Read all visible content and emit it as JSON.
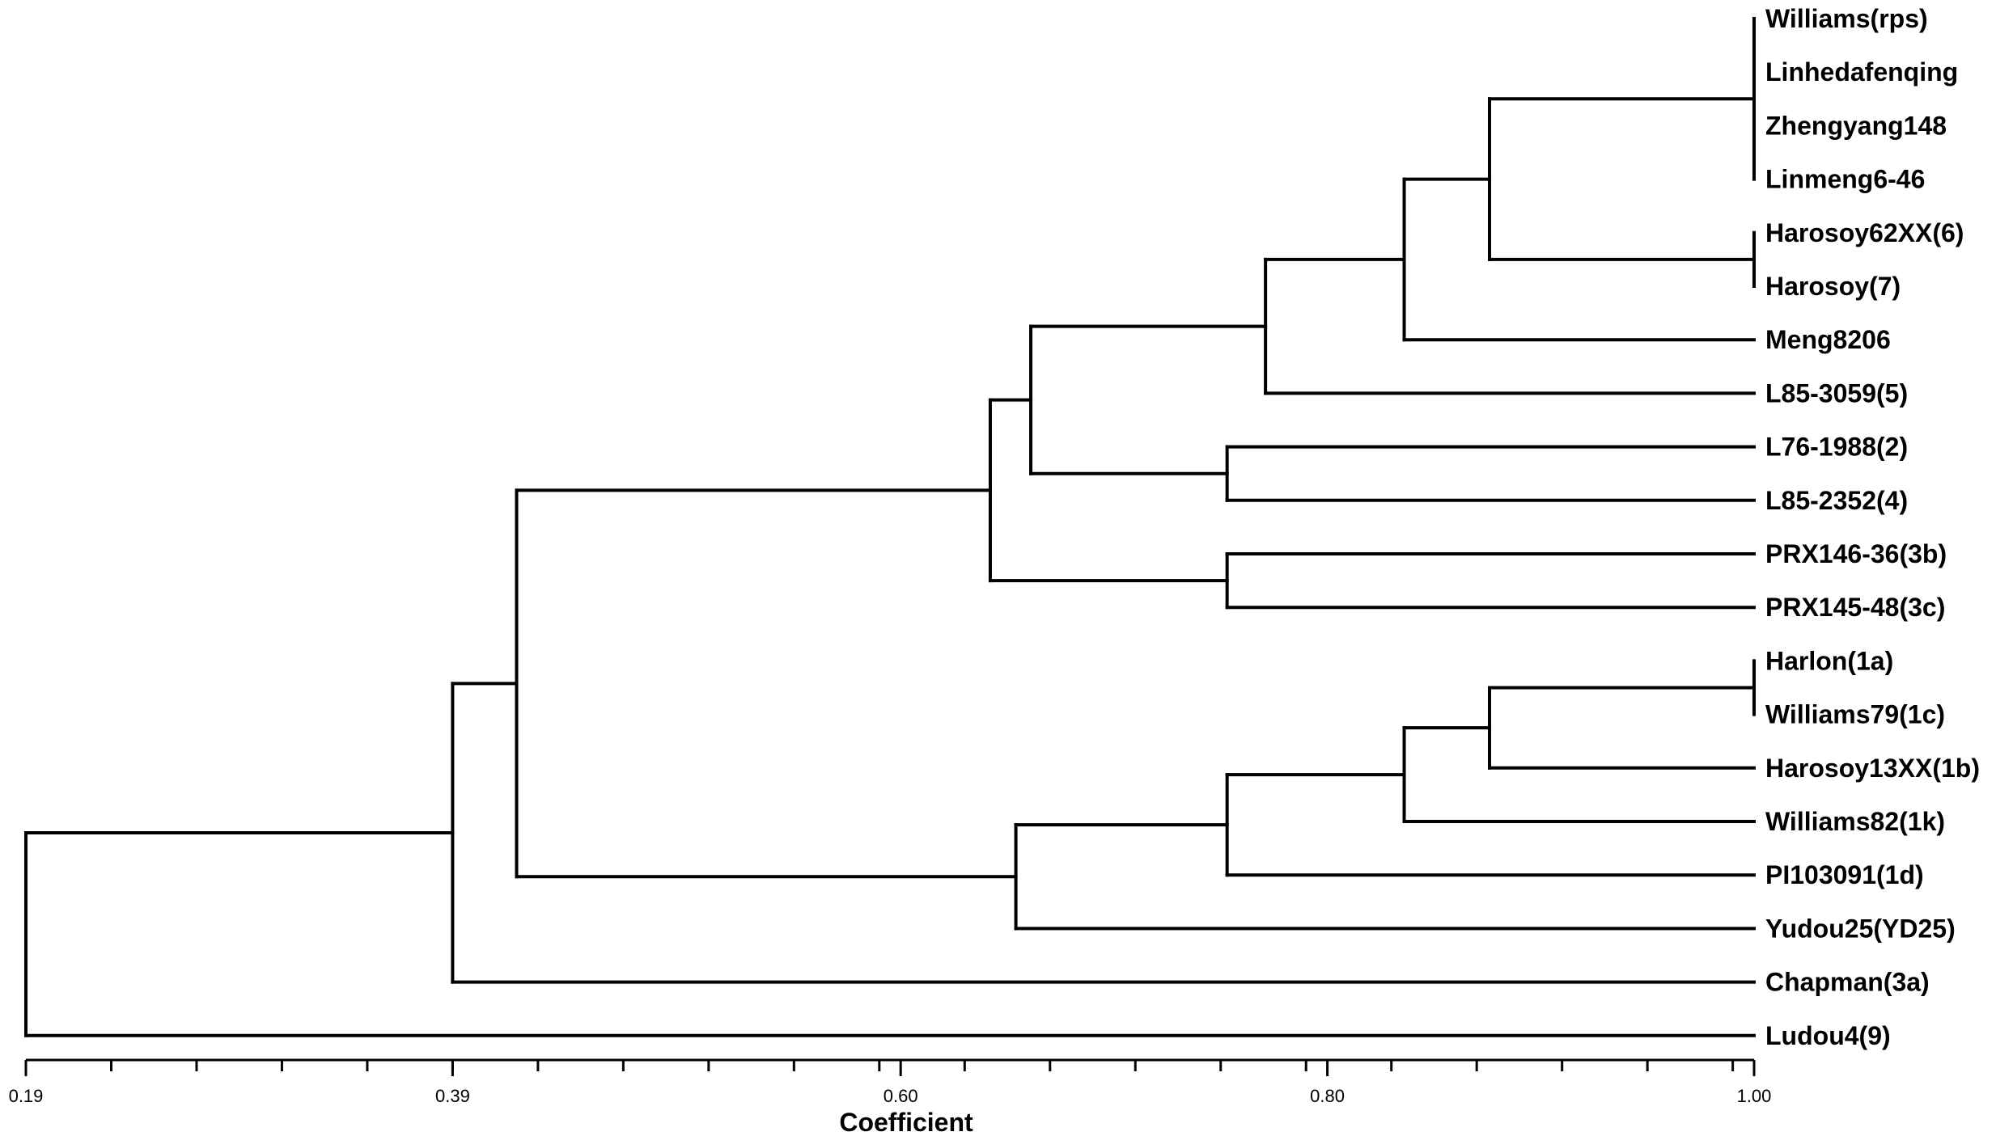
{
  "diagram": {
    "type": "dendrogram",
    "leaves": [
      "Williams(rps)",
      "Linhedafenqing",
      "Zhengyang148",
      "Linmeng6-46",
      "Harosoy62XX(6)",
      "Harosoy(7)",
      "Meng8206",
      "L85-3059(5)",
      "L76-1988(2)",
      "L85-2352(4)",
      "PRX146-36(3b)",
      "PRX145-48(3c)",
      "Harlon(1a)",
      "Williams79(1c)",
      "Harosoy13XX(1b)",
      "Williams82(1k)",
      "PI103091(1d)",
      "Yudou25(YD25)",
      "Chapman(3a)",
      "Ludou4(9)"
    ],
    "merges": [
      {
        "id": "n1",
        "children": [
          "L0",
          "L1",
          "L2",
          "L3"
        ],
        "coefficient": 1.0
      },
      {
        "id": "n2",
        "children": [
          "L4",
          "L5"
        ],
        "coefficient": 1.0
      },
      {
        "id": "n3",
        "children": [
          "L12",
          "L13"
        ],
        "coefficient": 1.0
      },
      {
        "id": "n4",
        "children": [
          "n1",
          "n2"
        ],
        "coefficient": 0.876
      },
      {
        "id": "n5",
        "children": [
          "n4",
          "L6"
        ],
        "coefficient": 0.836
      },
      {
        "id": "n6",
        "children": [
          "n5",
          "L7"
        ],
        "coefficient": 0.771
      },
      {
        "id": "n7",
        "children": [
          "L8",
          "L9"
        ],
        "coefficient": 0.753
      },
      {
        "id": "n8",
        "children": [
          "n6",
          "n7"
        ],
        "coefficient": 0.661
      },
      {
        "id": "n9",
        "children": [
          "L10",
          "L11"
        ],
        "coefficient": 0.753
      },
      {
        "id": "n10",
        "children": [
          "n8",
          "n9"
        ],
        "coefficient": 0.642
      },
      {
        "id": "n11",
        "children": [
          "n3",
          "L14"
        ],
        "coefficient": 0.876
      },
      {
        "id": "n12",
        "children": [
          "n11",
          "L15"
        ],
        "coefficient": 0.836
      },
      {
        "id": "n13",
        "children": [
          "n12",
          "L16"
        ],
        "coefficient": 0.753
      },
      {
        "id": "n14",
        "children": [
          "n13",
          "L17"
        ],
        "coefficient": 0.654
      },
      {
        "id": "n15",
        "children": [
          "n10",
          "n14"
        ],
        "coefficient": 0.42
      },
      {
        "id": "n16",
        "children": [
          "n15",
          "L18"
        ],
        "coefficient": 0.39
      },
      {
        "id": "n17",
        "children": [
          "n16",
          "L19"
        ],
        "coefficient": 0.19
      }
    ]
  },
  "axis": {
    "title": "Coefficient",
    "min": 0.19,
    "max": 1.0,
    "tick_labels": [
      {
        "value": 0.19,
        "label": "0.19"
      },
      {
        "value": 0.39,
        "label": "0.39"
      },
      {
        "value": 0.6,
        "label": "0.60"
      },
      {
        "value": 0.8,
        "label": "0.80"
      },
      {
        "value": 1.0,
        "label": "1.00"
      }
    ],
    "minor_tick_step": 0.04
  }
}
